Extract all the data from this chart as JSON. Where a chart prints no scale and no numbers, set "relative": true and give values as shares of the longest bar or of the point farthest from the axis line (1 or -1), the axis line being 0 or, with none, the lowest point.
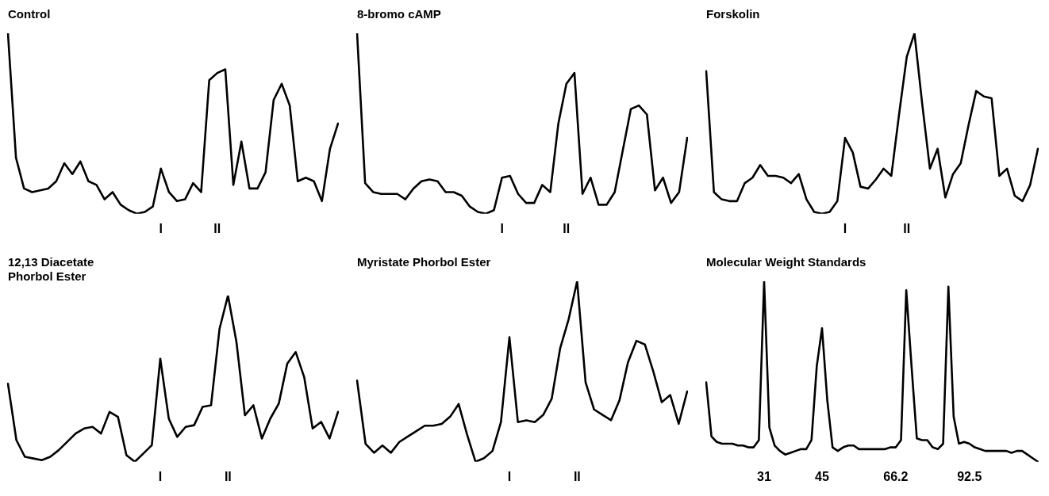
{
  "chart_data": [
    {
      "type": "line",
      "title": "Control",
      "relative": true,
      "tick_labels": "x",
      "grid": false,
      "color": "#000000",
      "marker": "none",
      "categories": [
        null,
        null,
        null,
        null,
        null,
        null,
        null,
        null,
        null,
        null,
        null,
        null,
        null,
        null,
        null,
        null,
        null,
        null,
        null,
        "I",
        null,
        null,
        null,
        null,
        null,
        null,
        "II",
        null,
        null,
        null,
        null,
        null,
        null,
        null,
        null,
        null,
        null,
        null,
        null,
        null,
        null,
        null
      ],
      "values": [
        1.0,
        0.31,
        0.14,
        0.12,
        0.13,
        0.14,
        0.18,
        0.28,
        0.22,
        0.29,
        0.18,
        0.16,
        0.08,
        0.12,
        0.05,
        0.02,
        0.0,
        0.01,
        0.04,
        0.25,
        0.12,
        0.07,
        0.08,
        0.17,
        0.12,
        0.74,
        0.78,
        0.8,
        0.16,
        0.4,
        0.14,
        0.14,
        0.23,
        0.63,
        0.72,
        0.6,
        0.18,
        0.2,
        0.18,
        0.07,
        0.36,
        0.5
      ]
    },
    {
      "type": "line",
      "title": "8-bromo cAMP",
      "relative": true,
      "tick_labels": "x",
      "grid": false,
      "color": "#000000",
      "marker": "none",
      "categories": [
        null,
        null,
        null,
        null,
        null,
        null,
        null,
        null,
        null,
        null,
        null,
        null,
        null,
        null,
        null,
        null,
        null,
        null,
        "I",
        null,
        null,
        null,
        null,
        null,
        null,
        null,
        "II",
        null,
        null,
        null,
        null,
        null,
        null,
        null,
        null,
        null,
        null,
        null,
        null,
        null,
        null,
        null
      ],
      "values": [
        1.0,
        0.17,
        0.12,
        0.11,
        0.11,
        0.11,
        0.08,
        0.14,
        0.18,
        0.19,
        0.18,
        0.12,
        0.12,
        0.1,
        0.04,
        0.01,
        0.0,
        0.02,
        0.2,
        0.21,
        0.11,
        0.06,
        0.06,
        0.16,
        0.12,
        0.5,
        0.72,
        0.78,
        0.11,
        0.2,
        0.05,
        0.05,
        0.12,
        0.35,
        0.58,
        0.6,
        0.55,
        0.13,
        0.2,
        0.06,
        0.12,
        0.42
      ]
    },
    {
      "type": "line",
      "title": "Forskolin",
      "relative": true,
      "tick_labels": "x",
      "grid": false,
      "color": "#000000",
      "marker": "none",
      "categories": [
        null,
        null,
        null,
        null,
        null,
        null,
        null,
        null,
        null,
        null,
        null,
        null,
        null,
        null,
        null,
        null,
        null,
        null,
        "I",
        null,
        null,
        null,
        null,
        null,
        null,
        null,
        "II",
        null,
        null,
        null,
        null,
        null,
        null,
        null,
        null,
        null,
        null,
        null,
        null,
        null,
        null,
        null,
        null,
        null
      ],
      "values": [
        0.79,
        0.12,
        0.08,
        0.07,
        0.07,
        0.17,
        0.2,
        0.27,
        0.21,
        0.21,
        0.2,
        0.17,
        0.22,
        0.08,
        0.01,
        0.0,
        0.01,
        0.07,
        0.42,
        0.34,
        0.15,
        0.14,
        0.19,
        0.25,
        0.21,
        0.55,
        0.87,
        1.0,
        0.61,
        0.25,
        0.36,
        0.09,
        0.22,
        0.28,
        0.49,
        0.68,
        0.65,
        0.64,
        0.21,
        0.25,
        0.1,
        0.07,
        0.16,
        0.36
      ]
    },
    {
      "type": "line",
      "title": "12,13 Diacetate\nPhorbol Ester",
      "relative": true,
      "tick_labels": "x",
      "grid": false,
      "color": "#000000",
      "marker": "none",
      "categories": [
        null,
        null,
        null,
        null,
        null,
        null,
        null,
        null,
        null,
        null,
        null,
        null,
        null,
        null,
        null,
        null,
        null,
        null,
        "I",
        null,
        null,
        null,
        null,
        null,
        null,
        null,
        "II",
        null,
        null,
        null,
        null,
        null,
        null,
        null,
        null,
        null,
        null,
        null,
        null,
        null
      ],
      "values": [
        0.47,
        0.13,
        0.03,
        0.02,
        0.01,
        0.03,
        0.07,
        0.12,
        0.17,
        0.2,
        0.21,
        0.17,
        0.3,
        0.27,
        0.04,
        0.0,
        0.05,
        0.1,
        0.62,
        0.26,
        0.15,
        0.21,
        0.22,
        0.33,
        0.34,
        0.8,
        1.0,
        0.72,
        0.28,
        0.34,
        0.14,
        0.26,
        0.35,
        0.59,
        0.66,
        0.51,
        0.2,
        0.24,
        0.14,
        0.3
      ]
    },
    {
      "type": "line",
      "title": "Myristate Phorbol Ester",
      "relative": true,
      "tick_labels": "x",
      "grid": false,
      "color": "#000000",
      "marker": "none",
      "categories": [
        null,
        null,
        null,
        null,
        null,
        null,
        null,
        null,
        null,
        null,
        null,
        null,
        null,
        null,
        null,
        null,
        null,
        null,
        "I",
        null,
        null,
        null,
        null,
        null,
        null,
        null,
        "II",
        null,
        null,
        null,
        null,
        null,
        null,
        null,
        null,
        null,
        null,
        null,
        null,
        null
      ],
      "values": [
        0.45,
        0.1,
        0.05,
        0.09,
        0.05,
        0.11,
        0.14,
        0.17,
        0.2,
        0.2,
        0.21,
        0.25,
        0.32,
        0.15,
        0.0,
        0.02,
        0.06,
        0.22,
        0.69,
        0.22,
        0.23,
        0.22,
        0.26,
        0.35,
        0.63,
        0.79,
        1.0,
        0.44,
        0.29,
        0.26,
        0.23,
        0.34,
        0.55,
        0.67,
        0.65,
        0.5,
        0.33,
        0.37,
        0.21,
        0.39
      ]
    },
    {
      "type": "line",
      "title": "Molecular Weight Standards",
      "relative": true,
      "tick_labels": "x",
      "grid": false,
      "color": "#000000",
      "marker": "none",
      "categories": [
        null,
        null,
        null,
        null,
        null,
        null,
        null,
        null,
        null,
        null,
        null,
        "31",
        null,
        null,
        null,
        null,
        null,
        null,
        null,
        null,
        null,
        null,
        "45",
        null,
        null,
        null,
        null,
        null,
        null,
        null,
        null,
        null,
        null,
        null,
        null,
        null,
        "66.2",
        null,
        null,
        null,
        null,
        null,
        null,
        null,
        null,
        null,
        null,
        null,
        null,
        null,
        "92.5",
        null,
        null,
        null,
        null,
        null,
        null,
        null,
        null,
        null,
        null,
        null,
        null,
        null
      ],
      "values": [
        0.44,
        0.14,
        0.11,
        0.1,
        0.1,
        0.1,
        0.09,
        0.09,
        0.08,
        0.08,
        0.12,
        1.0,
        0.19,
        0.09,
        0.06,
        0.04,
        0.05,
        0.06,
        0.07,
        0.07,
        0.12,
        0.53,
        0.74,
        0.34,
        0.08,
        0.06,
        0.08,
        0.09,
        0.09,
        0.07,
        0.07,
        0.07,
        0.07,
        0.07,
        0.07,
        0.08,
        0.08,
        0.12,
        0.95,
        0.53,
        0.13,
        0.12,
        0.12,
        0.08,
        0.07,
        0.1,
        0.97,
        0.25,
        0.1,
        0.11,
        0.1,
        0.08,
        0.07,
        0.06,
        0.06,
        0.06,
        0.06,
        0.06,
        0.05,
        0.06,
        0.06,
        0.04,
        0.02,
        0.0
      ]
    }
  ]
}
